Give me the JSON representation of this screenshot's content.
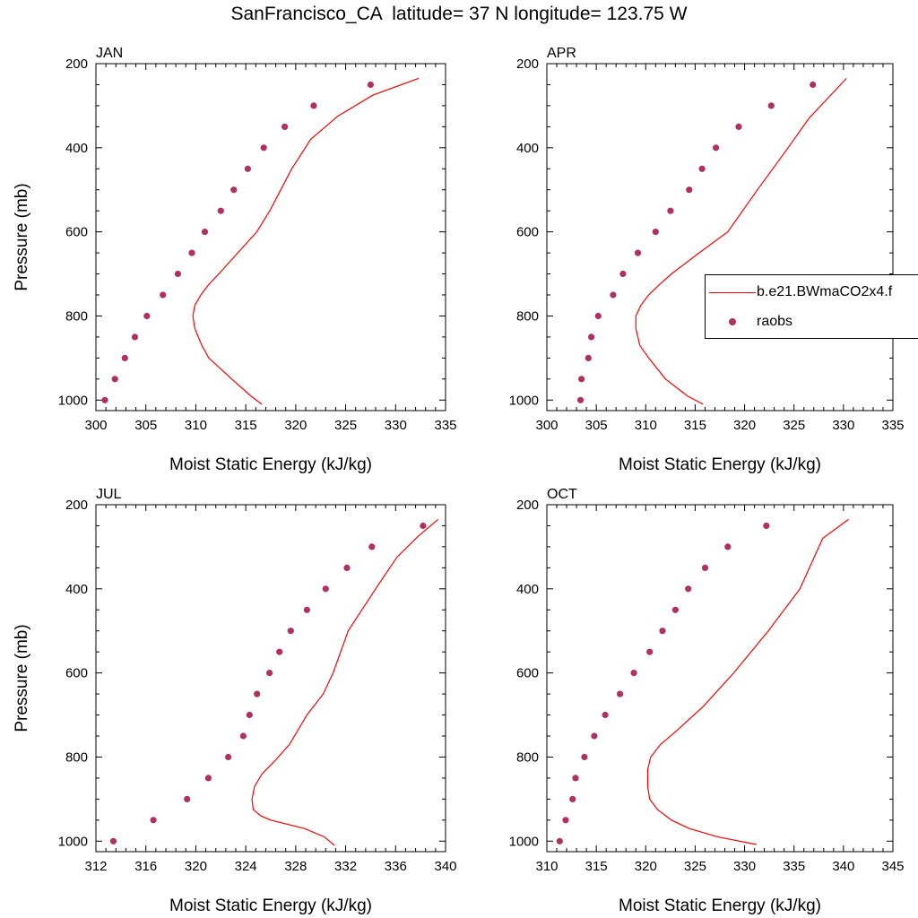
{
  "figure": {
    "title": "SanFrancisco_CA  latitude= 37 N longitude= 123.75 W",
    "line_color": "#ff0000",
    "marker_color": "#b03060"
  },
  "legend": {
    "model_label": "b.e21.BWmaCO2x4.f",
    "obs_label": "raobs"
  },
  "chart_data": [
    {
      "type": "line",
      "panel_label": "JAN",
      "xlabel": "Moist Static Energy (kJ/kg)",
      "ylabel": "Pressure (mb)",
      "xlim": [
        300,
        335
      ],
      "ylim": [
        1025,
        200
      ],
      "y_reversed": true,
      "x_ticks": [
        300,
        305,
        310,
        315,
        320,
        325,
        330,
        335
      ],
      "y_ticks": [
        200,
        400,
        600,
        800,
        1000
      ],
      "series": [
        {
          "name": "b.e21.BWmaCO2x4.f",
          "style": "line",
          "x": [
            316.6,
            315.5,
            313.6,
            311.3,
            310.6,
            309.9,
            309.7,
            309.9,
            310.5,
            311.3,
            312.3,
            314.2,
            316.1,
            317.4,
            319.6,
            321.5,
            324.2,
            327.7,
            332.3
          ],
          "y": [
            1010,
            990,
            950,
            900,
            870,
            830,
            800,
            775,
            750,
            725,
            700,
            650,
            600,
            550,
            450,
            380,
            325,
            275,
            235
          ]
        },
        {
          "name": "raobs",
          "style": "markers",
          "x": [
            300.9,
            301.9,
            302.9,
            303.9,
            305.1,
            306.7,
            308.2,
            309.6,
            310.9,
            312.5,
            313.8,
            315.2,
            316.8,
            318.9,
            321.8,
            327.5
          ],
          "y": [
            1000,
            950,
            900,
            850,
            800,
            750,
            700,
            650,
            600,
            550,
            500,
            450,
            400,
            350,
            300,
            250
          ]
        }
      ]
    },
    {
      "type": "line",
      "panel_label": "APR",
      "xlabel": "Moist Static Energy (kJ/kg)",
      "ylabel": "",
      "xlim": [
        300,
        335
      ],
      "ylim": [
        1025,
        200
      ],
      "y_reversed": true,
      "x_ticks": [
        300,
        305,
        310,
        315,
        320,
        325,
        330,
        335
      ],
      "y_ticks": [
        200,
        400,
        600,
        800,
        1000
      ],
      "series": [
        {
          "name": "b.e21.BWmaCO2x4.f",
          "style": "line",
          "x": [
            315.8,
            314.2,
            312.0,
            310.3,
            309.4,
            309.0,
            309.0,
            309.5,
            310.3,
            311.4,
            312.6,
            315.4,
            318.3,
            321.3,
            324.4,
            326.5,
            330.3
          ],
          "y": [
            1010,
            990,
            950,
            900,
            870,
            830,
            800,
            775,
            750,
            725,
            700,
            650,
            600,
            500,
            400,
            330,
            235
          ]
        },
        {
          "name": "raobs",
          "style": "markers",
          "x": [
            303.4,
            303.5,
            304.2,
            304.5,
            305.2,
            306.7,
            307.7,
            309.2,
            311.0,
            312.5,
            314.4,
            315.7,
            317.1,
            319.4,
            322.7,
            326.9
          ],
          "y": [
            1000,
            950,
            900,
            850,
            800,
            750,
            700,
            650,
            600,
            550,
            500,
            450,
            400,
            350,
            300,
            250
          ]
        }
      ]
    },
    {
      "type": "line",
      "panel_label": "JUL",
      "xlabel": "Moist Static Energy (kJ/kg)",
      "ylabel": "Pressure (mb)",
      "xlim": [
        312,
        340
      ],
      "ylim": [
        1025,
        200
      ],
      "y_reversed": true,
      "x_ticks": [
        312,
        316,
        320,
        324,
        328,
        332,
        336,
        340
      ],
      "y_ticks": [
        200,
        400,
        600,
        800,
        1000
      ],
      "series": [
        {
          "name": "b.e21.BWmaCO2x4.f",
          "style": "line",
          "x": [
            331.1,
            330.3,
            328.7,
            326.0,
            325.2,
            324.6,
            324.5,
            324.7,
            325.3,
            326.3,
            327.5,
            328.9,
            330.2,
            331.0,
            332.2,
            334.4,
            336.1,
            337.8,
            339.4
          ],
          "y": [
            1010,
            990,
            970,
            950,
            940,
            925,
            900,
            870,
            840,
            810,
            770,
            700,
            650,
            600,
            500,
            400,
            325,
            275,
            235
          ]
        },
        {
          "name": "raobs",
          "style": "markers",
          "x": [
            313.4,
            316.6,
            319.3,
            321.0,
            322.6,
            323.8,
            324.3,
            324.9,
            325.9,
            326.7,
            327.6,
            328.9,
            330.4,
            332.1,
            334.1,
            338.2
          ],
          "y": [
            1000,
            950,
            900,
            850,
            800,
            750,
            700,
            650,
            600,
            550,
            500,
            450,
            400,
            350,
            300,
            250
          ]
        }
      ]
    },
    {
      "type": "line",
      "panel_label": "OCT",
      "xlabel": "Moist Static Energy (kJ/kg)",
      "ylabel": "",
      "xlim": [
        310,
        345
      ],
      "ylim": [
        1025,
        200
      ],
      "y_reversed": true,
      "x_ticks": [
        310,
        315,
        320,
        325,
        330,
        335,
        340,
        345
      ],
      "y_ticks": [
        200,
        400,
        600,
        800,
        1000
      ],
      "series": [
        {
          "name": "b.e21.BWmaCO2x4.f",
          "style": "line",
          "x": [
            331.2,
            327.3,
            324.4,
            322.6,
            321.2,
            320.4,
            320.2,
            320.2,
            320.5,
            321.5,
            323.0,
            325.8,
            328.9,
            332.4,
            335.6,
            337.9,
            340.5
          ],
          "y": [
            1008,
            990,
            970,
            950,
            925,
            900,
            870,
            830,
            800,
            770,
            740,
            680,
            600,
            500,
            400,
            280,
            235
          ]
        },
        {
          "name": "raobs",
          "style": "markers",
          "x": [
            311.3,
            311.9,
            312.6,
            312.9,
            313.8,
            314.8,
            315.9,
            317.4,
            318.8,
            320.4,
            321.7,
            323.0,
            324.3,
            326.0,
            328.3,
            332.2
          ],
          "y": [
            1000,
            950,
            900,
            850,
            800,
            750,
            700,
            650,
            600,
            550,
            500,
            450,
            400,
            350,
            300,
            250
          ]
        }
      ]
    }
  ]
}
